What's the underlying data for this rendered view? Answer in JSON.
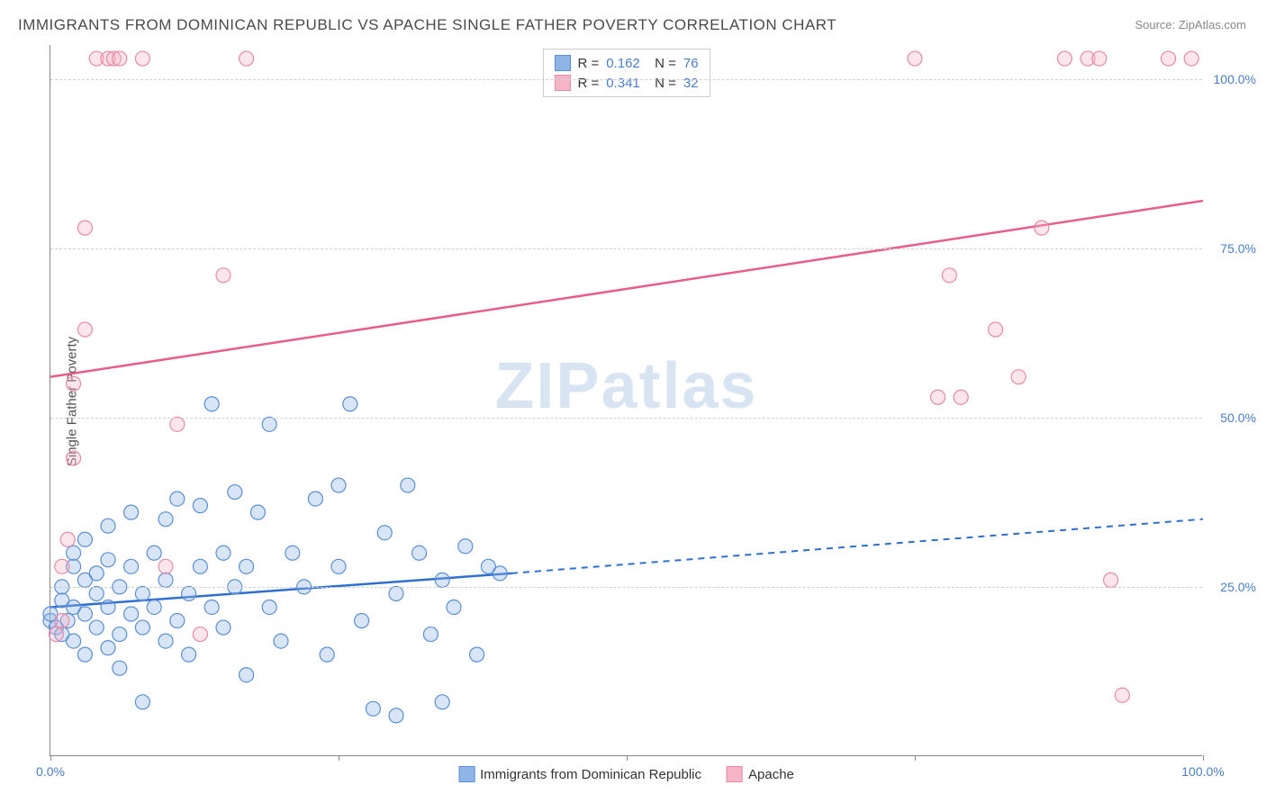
{
  "title": "IMMIGRANTS FROM DOMINICAN REPUBLIC VS APACHE SINGLE FATHER POVERTY CORRELATION CHART",
  "source": "Source: ZipAtlas.com",
  "watermark": "ZIPatlas",
  "ylabel": "Single Father Poverty",
  "chart": {
    "type": "scatter",
    "xlim": [
      0,
      100
    ],
    "ylim": [
      0,
      105
    ],
    "yticks": [
      25,
      50,
      75,
      100
    ],
    "ytick_labels": [
      "25.0%",
      "50.0%",
      "75.0%",
      "100.0%"
    ],
    "xticks": [
      0,
      25,
      50,
      75,
      100
    ],
    "xtick_labels": {
      "0": "0.0%",
      "100": "100.0%"
    },
    "background_color": "#ffffff",
    "grid_color": "#d0d0d0",
    "marker_radius": 8,
    "marker_fill_opacity": 0.35,
    "marker_stroke_width": 1.2,
    "line_width_solid": 2.5,
    "line_width_dash": 2,
    "dash_pattern": "7,6"
  },
  "series": [
    {
      "id": "blue",
      "label": "Immigrants from Dominican Republic",
      "color_fill": "#8fb4e6",
      "color_stroke": "#5a8fd6",
      "color_line": "#2e6fd1",
      "R": "0.162",
      "N": "76",
      "trend_solid": {
        "x1": 0,
        "y1": 22,
        "x2": 40,
        "y2": 27
      },
      "trend_dash": {
        "x1": 40,
        "y1": 27,
        "x2": 100,
        "y2": 35
      },
      "points": [
        [
          0,
          20
        ],
        [
          0,
          21
        ],
        [
          0.5,
          19
        ],
        [
          1,
          18
        ],
        [
          1,
          23
        ],
        [
          1,
          25
        ],
        [
          1.5,
          20
        ],
        [
          2,
          17
        ],
        [
          2,
          22
        ],
        [
          2,
          28
        ],
        [
          2,
          30
        ],
        [
          3,
          15
        ],
        [
          3,
          21
        ],
        [
          3,
          26
        ],
        [
          3,
          32
        ],
        [
          4,
          19
        ],
        [
          4,
          24
        ],
        [
          4,
          27
        ],
        [
          5,
          16
        ],
        [
          5,
          22
        ],
        [
          5,
          29
        ],
        [
          5,
          34
        ],
        [
          6,
          18
        ],
        [
          6,
          25
        ],
        [
          6,
          13
        ],
        [
          7,
          21
        ],
        [
          7,
          28
        ],
        [
          7,
          36
        ],
        [
          8,
          19
        ],
        [
          8,
          24
        ],
        [
          8,
          8
        ],
        [
          9,
          22
        ],
        [
          9,
          30
        ],
        [
          10,
          17
        ],
        [
          10,
          26
        ],
        [
          10,
          35
        ],
        [
          11,
          20
        ],
        [
          11,
          38
        ],
        [
          12,
          24
        ],
        [
          12,
          15
        ],
        [
          13,
          28
        ],
        [
          13,
          37
        ],
        [
          14,
          22
        ],
        [
          14,
          52
        ],
        [
          15,
          30
        ],
        [
          15,
          19
        ],
        [
          16,
          25
        ],
        [
          16,
          39
        ],
        [
          17,
          28
        ],
        [
          17,
          12
        ],
        [
          18,
          36
        ],
        [
          19,
          22
        ],
        [
          19,
          49
        ],
        [
          20,
          17
        ],
        [
          21,
          30
        ],
        [
          22,
          25
        ],
        [
          23,
          38
        ],
        [
          24,
          15
        ],
        [
          25,
          28
        ],
        [
          25,
          40
        ],
        [
          26,
          52
        ],
        [
          27,
          20
        ],
        [
          28,
          7
        ],
        [
          29,
          33
        ],
        [
          30,
          24
        ],
        [
          30,
          6
        ],
        [
          31,
          40
        ],
        [
          32,
          30
        ],
        [
          33,
          18
        ],
        [
          34,
          8
        ],
        [
          34,
          26
        ],
        [
          35,
          22
        ],
        [
          36,
          31
        ],
        [
          37,
          15
        ],
        [
          38,
          28
        ],
        [
          39,
          27
        ]
      ]
    },
    {
      "id": "pink",
      "label": "Apache",
      "color_fill": "#f5b5c6",
      "color_stroke": "#e88aa6",
      "color_line": "#e75d8b",
      "R": "0.341",
      "N": "32",
      "trend_solid": {
        "x1": 0,
        "y1": 56,
        "x2": 100,
        "y2": 82
      },
      "trend_dash": null,
      "points": [
        [
          0.5,
          18
        ],
        [
          1,
          20
        ],
        [
          1,
          28
        ],
        [
          1.5,
          32
        ],
        [
          2,
          44
        ],
        [
          2,
          55
        ],
        [
          3,
          63
        ],
        [
          3,
          78
        ],
        [
          4,
          103
        ],
        [
          5,
          103
        ],
        [
          5.5,
          103
        ],
        [
          6,
          103
        ],
        [
          8,
          103
        ],
        [
          10,
          28
        ],
        [
          11,
          49
        ],
        [
          13,
          18
        ],
        [
          15,
          71
        ],
        [
          17,
          103
        ],
        [
          75,
          103
        ],
        [
          77,
          53
        ],
        [
          78,
          71
        ],
        [
          79,
          53
        ],
        [
          82,
          63
        ],
        [
          84,
          56
        ],
        [
          86,
          78
        ],
        [
          88,
          103
        ],
        [
          90,
          103
        ],
        [
          91,
          103
        ],
        [
          92,
          26
        ],
        [
          93,
          9
        ],
        [
          97,
          103
        ],
        [
          99,
          103
        ]
      ]
    }
  ]
}
